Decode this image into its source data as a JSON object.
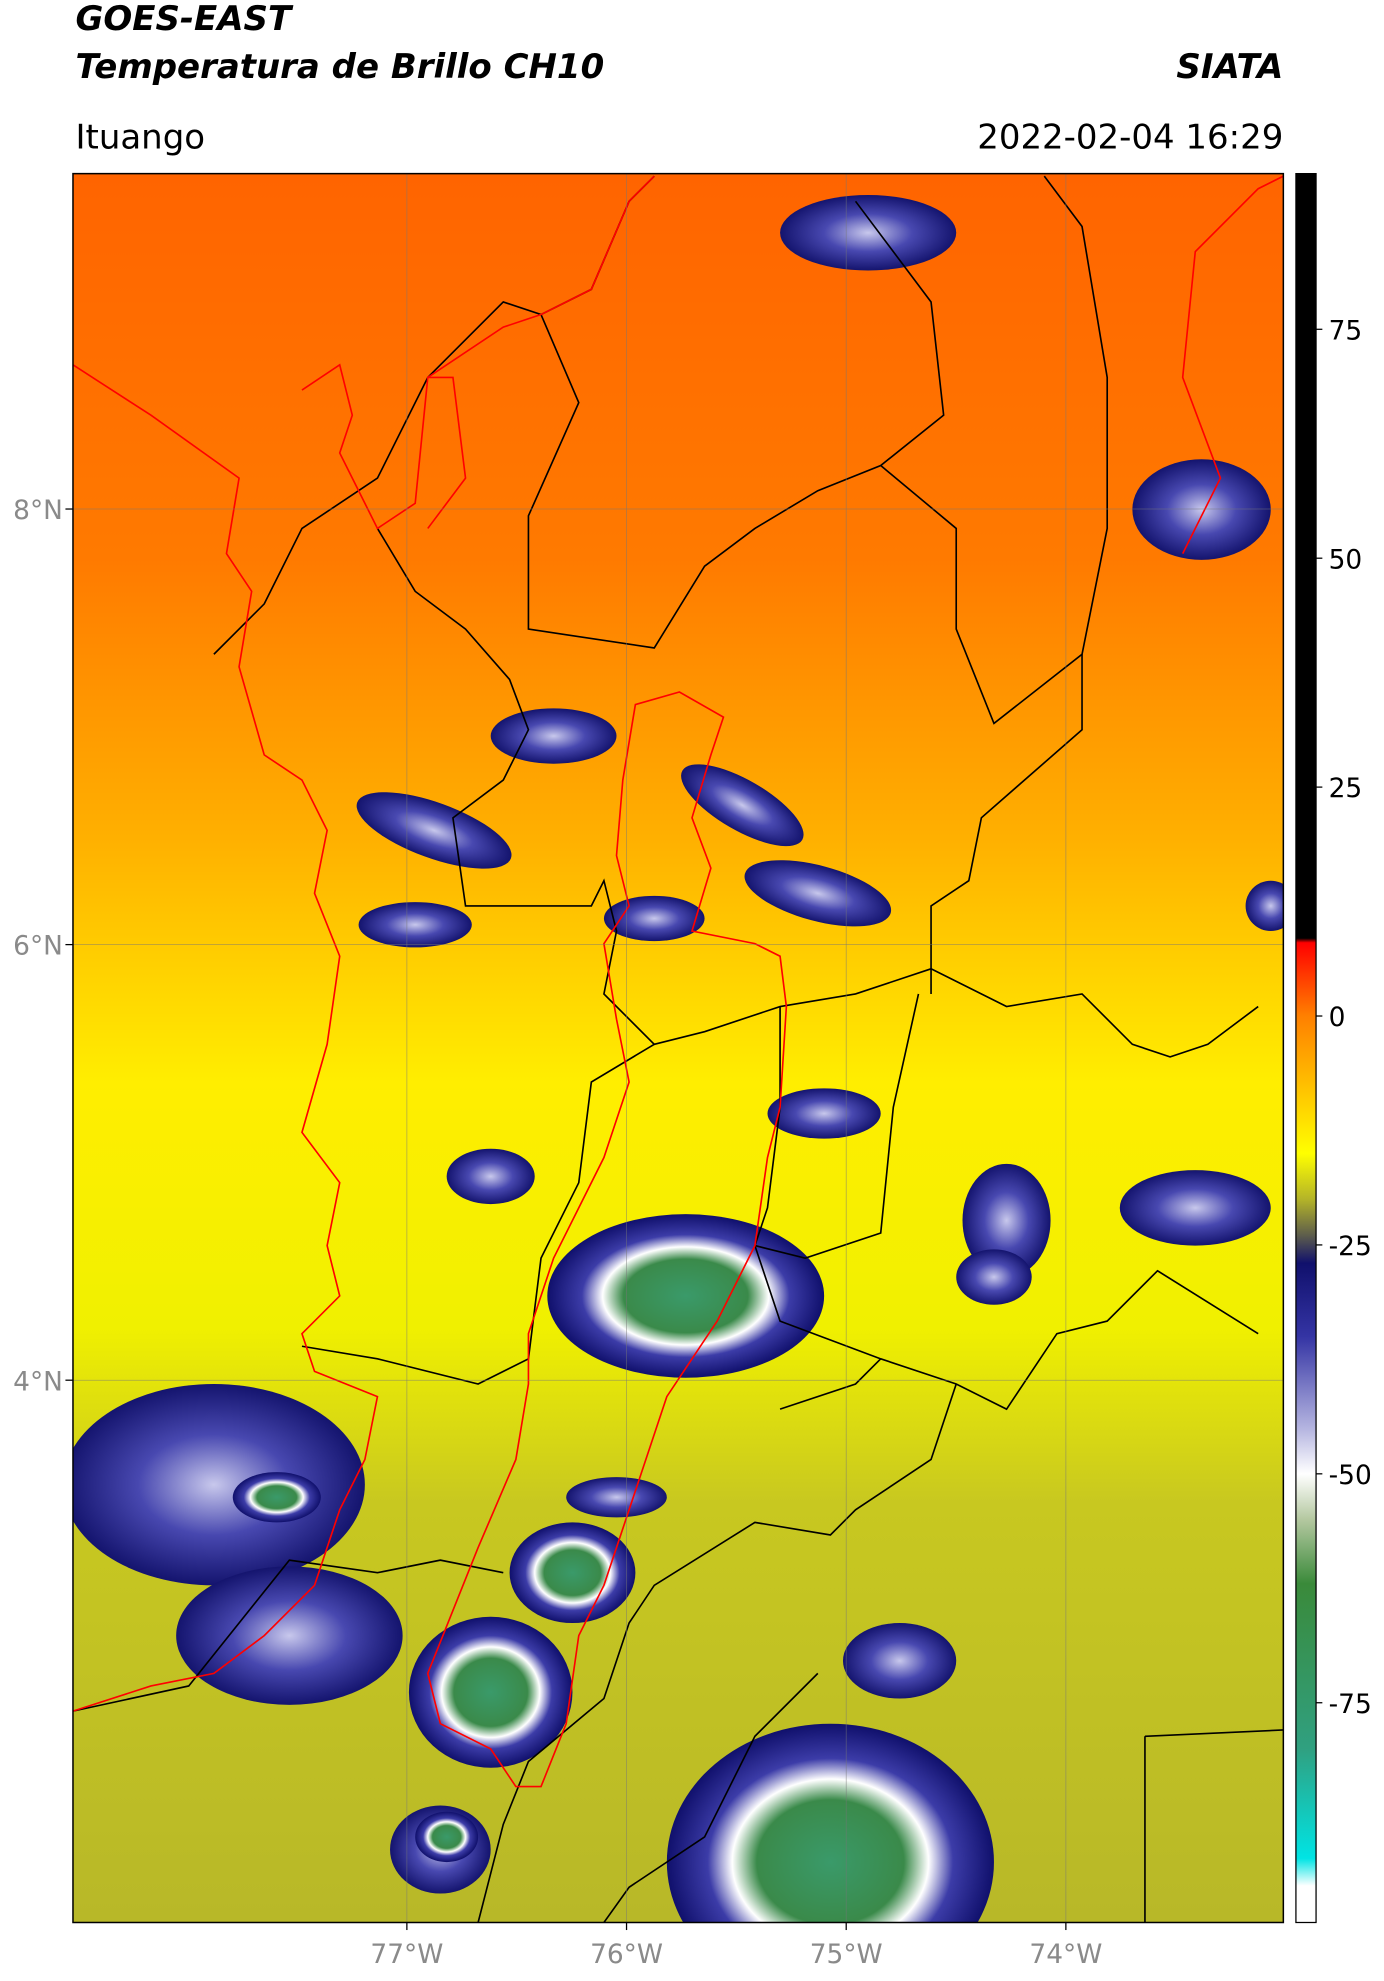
{
  "map": {
    "title": "GOES-EAST",
    "subtitle": "Temperatura de Brillo CH10",
    "source": "SIATA",
    "region": "Ituango",
    "timestamp": "2022-02-04 16:29",
    "xlim": [
      -78.52,
      -73.01
    ],
    "ylim": [
      1.51,
      9.54
    ],
    "xticks": [
      {
        "value": -77,
        "label": "77°W"
      },
      {
        "value": -76,
        "label": "76°W"
      },
      {
        "value": -75,
        "label": "75°W"
      },
      {
        "value": -74,
        "label": "74°W"
      }
    ],
    "yticks": [
      {
        "value": 8,
        "label": "8°N"
      },
      {
        "value": 6,
        "label": "6°N"
      },
      {
        "value": 4,
        "label": "4°N"
      }
    ],
    "grid": true,
    "colorbar": {
      "lim": [
        -99,
        92
      ],
      "ticks": [
        75,
        50,
        25,
        0,
        -25,
        -50,
        -75
      ],
      "stops": [
        {
          "value": 92,
          "color": "#000000"
        },
        {
          "value": 8.5,
          "color": "#000000"
        },
        {
          "value": 8,
          "color": "#ff0000"
        },
        {
          "value": 0,
          "color": "#ff8000"
        },
        {
          "value": -10,
          "color": "#ffd400"
        },
        {
          "value": -15,
          "color": "#ffff00"
        },
        {
          "value": -20,
          "color": "#b4b428"
        },
        {
          "value": -24,
          "color": "#5c5c4c"
        },
        {
          "value": -27,
          "color": "#10106c"
        },
        {
          "value": -35,
          "color": "#3434a4"
        },
        {
          "value": -45,
          "color": "#b4b4e0"
        },
        {
          "value": -50,
          "color": "#ffffff"
        },
        {
          "value": -55,
          "color": "#b4c8a0"
        },
        {
          "value": -62,
          "color": "#3a8a3a"
        },
        {
          "value": -80,
          "color": "#30a080"
        },
        {
          "value": -92,
          "color": "#00e4e4"
        },
        {
          "value": -95,
          "color": "#ffffff"
        },
        {
          "value": -99,
          "color": "#ffffff"
        }
      ]
    }
  }
}
